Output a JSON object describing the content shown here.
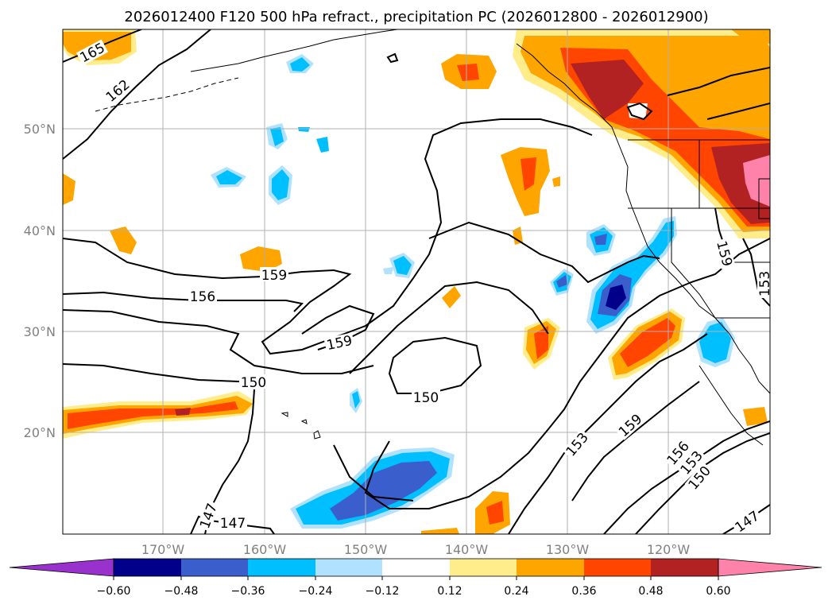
{
  "title": "2026012400 F120 500 hPa refract., precipitation PC (2026012800 - 2026012900)",
  "map": {
    "lat_ticks": [
      "50°N",
      "40°N",
      "30°N",
      "20°N"
    ],
    "lon_ticks": [
      "170°W",
      "160°W",
      "150°W",
      "140°W",
      "130°W",
      "120°W"
    ],
    "contour_labels": [
      "165",
      "162",
      "159",
      "156",
      "159",
      "150",
      "150",
      "153",
      "159",
      "156",
      "153",
      "150",
      "147",
      "147",
      "147",
      "159",
      "153"
    ]
  },
  "colorbar": {
    "ticks": [
      "−0.60",
      "−0.48",
      "−0.36",
      "−0.24",
      "−0.12",
      "0.12",
      "0.24",
      "0.36",
      "0.48",
      "0.60"
    ],
    "colors": [
      "#9932cc",
      "#00008b",
      "#3a5fcd",
      "#00bfff",
      "#b0e2ff",
      "#ffffff",
      "#ffec8b",
      "#ffa500",
      "#ff4500",
      "#b22222",
      "#ff82ab"
    ]
  }
}
